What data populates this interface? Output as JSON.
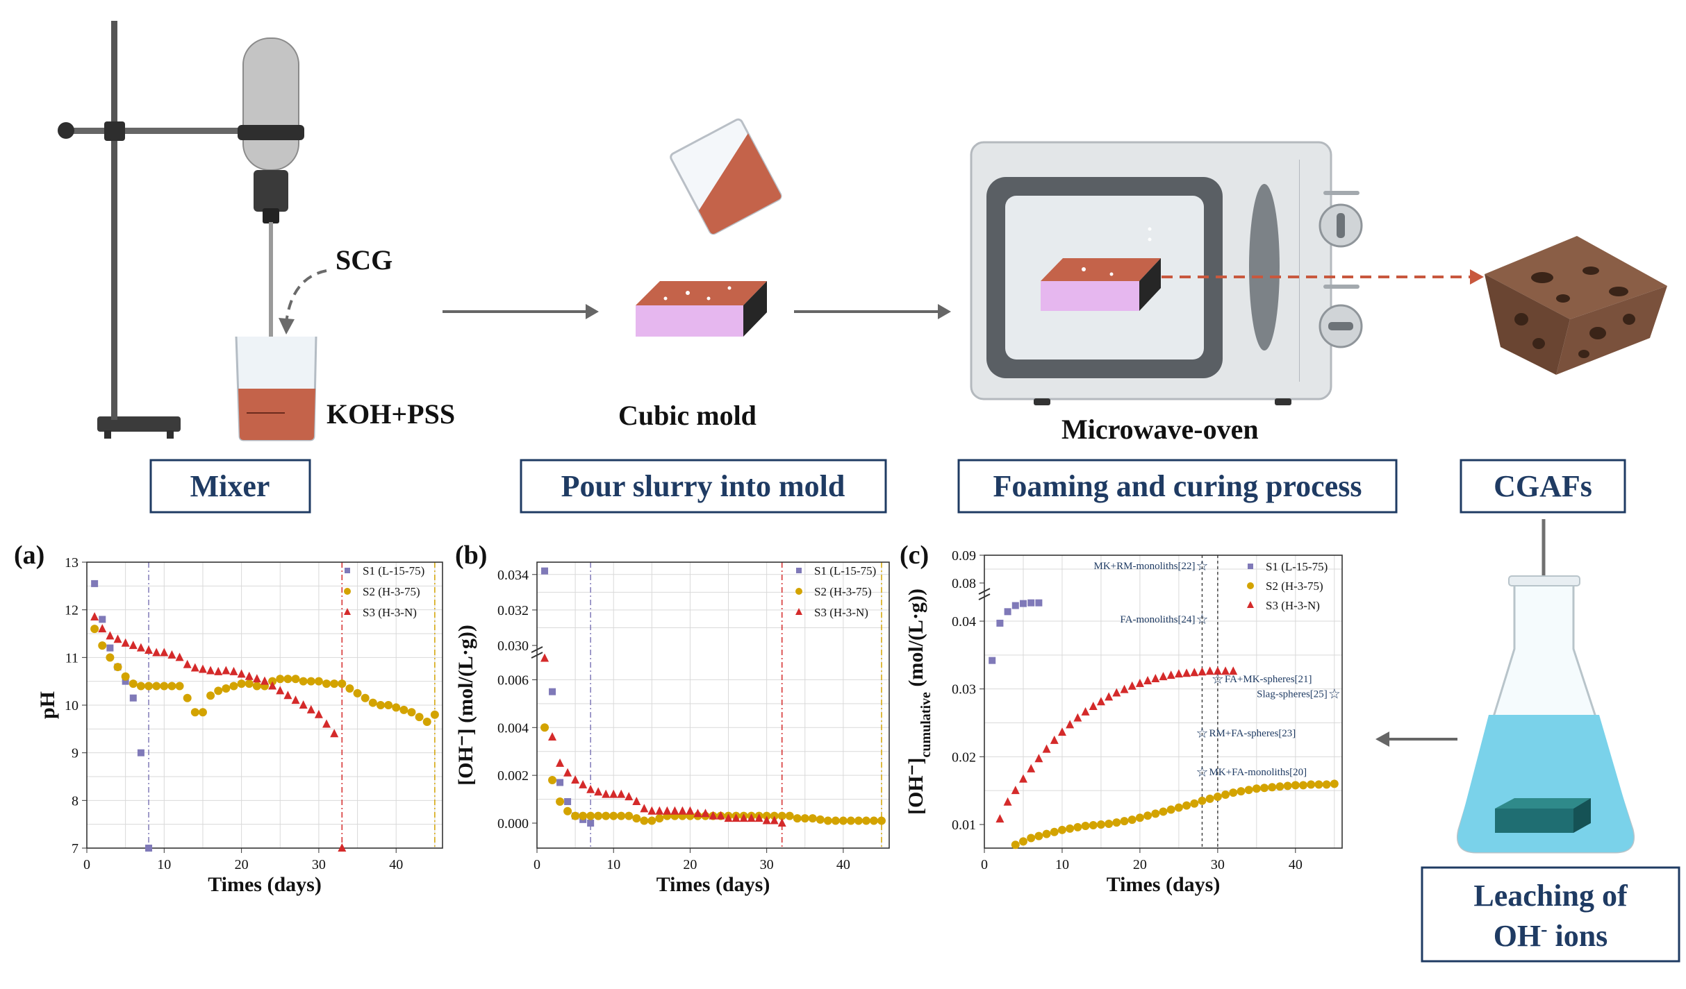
{
  "process": {
    "labels": {
      "scg": "SCG",
      "koh": "KOH+PSS",
      "cubic_mold": "Cubic mold",
      "microwave": "Microwave-oven"
    },
    "steps": [
      "Mixer",
      "Pour slurry into mold",
      "Foaming and curing process",
      "CGAFs"
    ],
    "leaching": {
      "line1": "Leaching of",
      "line2_main": "OH",
      "line2_sup": "-",
      "line2_end": " ions"
    }
  },
  "colors": {
    "s1": "#7f79b8",
    "s2": "#d3a300",
    "s3": "#d42a2a",
    "box_border": "#1f3b63",
    "annot": "#1f3b63"
  },
  "chart_data": [
    {
      "type": "scatter",
      "panel": "(a)",
      "xlabel": "Times (days)",
      "ylabel": "pH",
      "xlim": [
        0,
        46
      ],
      "ylim": [
        7,
        13
      ],
      "xticks": [
        0,
        10,
        20,
        30,
        40
      ],
      "yticks": [
        7,
        8,
        9,
        10,
        11,
        12,
        13
      ],
      "legend": "top-right",
      "vlines": [
        8,
        33,
        45
      ],
      "series": [
        {
          "name": "S1 (L-15-75)",
          "marker": "square",
          "x": [
            1,
            2,
            3,
            4,
            5,
            6,
            7,
            8
          ],
          "y": [
            12.55,
            11.8,
            11.2,
            10.8,
            10.5,
            10.15,
            9.0,
            7.0
          ]
        },
        {
          "name": "S2 (H-3-75)",
          "marker": "circle",
          "x": [
            1,
            2,
            3,
            4,
            5,
            6,
            7,
            8,
            9,
            10,
            11,
            12,
            13,
            14,
            15,
            16,
            17,
            18,
            19,
            20,
            21,
            22,
            23,
            24,
            25,
            26,
            27,
            28,
            29,
            30,
            31,
            32,
            33,
            34,
            35,
            36,
            37,
            38,
            39,
            40,
            41,
            42,
            43,
            44,
            45
          ],
          "y": [
            11.6,
            11.25,
            11.0,
            10.8,
            10.6,
            10.45,
            10.4,
            10.4,
            10.4,
            10.4,
            10.4,
            10.4,
            10.15,
            9.85,
            9.85,
            10.2,
            10.3,
            10.35,
            10.4,
            10.45,
            10.45,
            10.4,
            10.4,
            10.5,
            10.55,
            10.55,
            10.55,
            10.5,
            10.5,
            10.5,
            10.45,
            10.45,
            10.45,
            10.35,
            10.25,
            10.15,
            10.05,
            10.0,
            10.0,
            9.95,
            9.9,
            9.85,
            9.75,
            9.65,
            9.8
          ]
        },
        {
          "name": "S3 (H-3-N)",
          "marker": "triangle",
          "x": [
            1,
            2,
            3,
            4,
            5,
            6,
            7,
            8,
            9,
            10,
            11,
            12,
            13,
            14,
            15,
            16,
            17,
            18,
            19,
            20,
            21,
            22,
            23,
            24,
            25,
            26,
            27,
            28,
            29,
            30,
            31,
            32,
            33
          ],
          "y": [
            11.85,
            11.6,
            11.45,
            11.38,
            11.3,
            11.25,
            11.2,
            11.15,
            11.1,
            11.1,
            11.05,
            11.0,
            10.85,
            10.78,
            10.75,
            10.72,
            10.7,
            10.72,
            10.7,
            10.65,
            10.6,
            10.55,
            10.5,
            10.4,
            10.3,
            10.2,
            10.1,
            10.0,
            9.9,
            9.8,
            9.6,
            9.4,
            7.0
          ]
        }
      ]
    },
    {
      "type": "scatter",
      "panel": "(b)",
      "xlabel": "Times (days)",
      "ylabel": "[OH⁻] (mol/(L·g))",
      "xlim": [
        0,
        46
      ],
      "ylim_lower": [
        0,
        0.007
      ],
      "ylim_upper": [
        0.03,
        0.0345
      ],
      "yticks_lower": [
        "0.000",
        "0.002",
        "0.004",
        "0.006"
      ],
      "yticks_upper": [
        "0.030",
        "0.032",
        "0.034"
      ],
      "xticks": [
        0,
        10,
        20,
        30,
        40
      ],
      "legend": "top-right",
      "vlines": [
        7,
        32,
        45
      ],
      "series": [
        {
          "name": "S1 (L-15-75)",
          "marker": "square",
          "x": [
            1,
            2,
            3,
            4,
            5,
            6,
            7
          ],
          "y": [
            0.0342,
            0.0055,
            0.0017,
            0.0009,
            0.0003,
            0.00015,
            0.0
          ]
        },
        {
          "name": "S2 (H-3-75)",
          "marker": "circle",
          "x": [
            1,
            2,
            3,
            4,
            5,
            6,
            7,
            8,
            9,
            10,
            11,
            12,
            13,
            14,
            15,
            16,
            17,
            18,
            19,
            20,
            21,
            22,
            23,
            24,
            25,
            26,
            27,
            28,
            29,
            30,
            31,
            32,
            33,
            34,
            35,
            36,
            37,
            38,
            39,
            40,
            41,
            42,
            43,
            44,
            45
          ],
          "y": [
            0.004,
            0.0018,
            0.0009,
            0.0005,
            0.0003,
            0.0003,
            0.0003,
            0.0003,
            0.0003,
            0.0003,
            0.0003,
            0.0003,
            0.0002,
            0.0001,
            0.0001,
            0.0002,
            0.0003,
            0.0003,
            0.0003,
            0.0003,
            0.0003,
            0.0003,
            0.0003,
            0.0003,
            0.0003,
            0.0003,
            0.0003,
            0.0003,
            0.0003,
            0.0003,
            0.0003,
            0.0003,
            0.0003,
            0.0002,
            0.0002,
            0.0002,
            0.00015,
            0.0001,
            0.0001,
            0.0001,
            0.0001,
            0.0001,
            0.0001,
            0.0001,
            0.0001
          ]
        },
        {
          "name": "S3 (H-3-N)",
          "marker": "triangle",
          "x": [
            1,
            2,
            3,
            4,
            5,
            6,
            7,
            8,
            9,
            10,
            11,
            12,
            13,
            14,
            15,
            16,
            17,
            18,
            19,
            20,
            21,
            22,
            23,
            24,
            25,
            26,
            27,
            28,
            29,
            30,
            31,
            32
          ],
          "y": [
            0.0069,
            0.0036,
            0.0025,
            0.0021,
            0.0018,
            0.0016,
            0.0014,
            0.0013,
            0.0012,
            0.0012,
            0.0012,
            0.0011,
            0.0009,
            0.0006,
            0.0005,
            0.0005,
            0.0005,
            0.0005,
            0.0005,
            0.0005,
            0.0004,
            0.0004,
            0.0003,
            0.0003,
            0.0002,
            0.0002,
            0.0002,
            0.0002,
            0.0002,
            0.0001,
            0.0001,
            0.0
          ]
        }
      ]
    },
    {
      "type": "scatter",
      "panel": "(c)",
      "xlabel": "Times (days)",
      "ylabel_main": "[OH⁻]",
      "ylabel_sub": "cumulative",
      "ylabel_end": " (mol/(L·g))",
      "xlim": [
        0,
        46
      ],
      "ylim_lower": [
        0.008,
        0.045
      ],
      "ylim_upper": [
        0.08,
        0.09
      ],
      "yticks_lower": [
        "0.01",
        "0.02",
        "0.03",
        "0.04"
      ],
      "yticks_upper": [
        "0.08",
        "0.09"
      ],
      "xticks": [
        0,
        10,
        20,
        30,
        40
      ],
      "legend": "top-right",
      "vlines": [
        28,
        30
      ],
      "series": [
        {
          "name": "S1 (L-15-75)",
          "marker": "square",
          "x": [
            1,
            2,
            3,
            4,
            5,
            6,
            7
          ],
          "y": [
            0.0342,
            0.0397,
            0.0414,
            0.0423,
            0.0426,
            0.0427,
            0.0427
          ]
        },
        {
          "name": "S2 (H-3-75)",
          "marker": "circle",
          "x": [
            4,
            5,
            6,
            7,
            8,
            9,
            10,
            11,
            12,
            13,
            14,
            15,
            16,
            17,
            18,
            19,
            20,
            21,
            22,
            23,
            24,
            25,
            26,
            27,
            28,
            29,
            30,
            31,
            32,
            33,
            34,
            35,
            36,
            37,
            38,
            39,
            40,
            41,
            42,
            43,
            44,
            45
          ],
          "y": [
            0.007,
            0.0075,
            0.008,
            0.0083,
            0.0086,
            0.0089,
            0.0092,
            0.0094,
            0.0096,
            0.0098,
            0.0099,
            0.01,
            0.0101,
            0.0103,
            0.0105,
            0.0107,
            0.011,
            0.0113,
            0.0116,
            0.0119,
            0.0122,
            0.0125,
            0.0128,
            0.0131,
            0.0135,
            0.0138,
            0.0141,
            0.0144,
            0.0147,
            0.0149,
            0.0151,
            0.0153,
            0.0154,
            0.0155,
            0.0156,
            0.0157,
            0.0158,
            0.0158,
            0.0159,
            0.0159,
            0.0159,
            0.016
          ]
        },
        {
          "name": "S3 (H-3-N)",
          "marker": "triangle",
          "x": [
            2,
            3,
            4,
            5,
            6,
            7,
            8,
            9,
            10,
            11,
            12,
            13,
            14,
            15,
            16,
            17,
            18,
            19,
            20,
            21,
            22,
            23,
            24,
            25,
            26,
            27,
            28,
            29,
            30,
            31,
            32
          ],
          "y": [
            0.0108,
            0.0133,
            0.015,
            0.0167,
            0.0182,
            0.0197,
            0.0211,
            0.0224,
            0.0236,
            0.0247,
            0.0257,
            0.0266,
            0.0274,
            0.0281,
            0.0288,
            0.0294,
            0.0299,
            0.0304,
            0.0308,
            0.0312,
            0.0315,
            0.0318,
            0.032,
            0.0322,
            0.0323,
            0.0324,
            0.0325,
            0.0326,
            0.0326,
            0.0326,
            0.0326
          ]
        }
      ],
      "annotations": [
        {
          "text": "MK+RM-monoliths[22]",
          "x": 28,
          "y": 0.0862,
          "side": "left"
        },
        {
          "text": "FA-monoliths[24]",
          "x": 28,
          "y": 0.0403,
          "side": "left"
        },
        {
          "text": "FA+MK-spheres[21]",
          "x": 30,
          "y": 0.0315,
          "side": "right"
        },
        {
          "text": "Slag-spheres[25]",
          "x": 45,
          "y": 0.0293,
          "side": "left"
        },
        {
          "text": "RM+FA-spheres[23]",
          "x": 28,
          "y": 0.0235,
          "side": "right"
        },
        {
          "text": "MK+FA-monoliths[20]",
          "x": 28,
          "y": 0.0178,
          "side": "right"
        }
      ]
    }
  ]
}
